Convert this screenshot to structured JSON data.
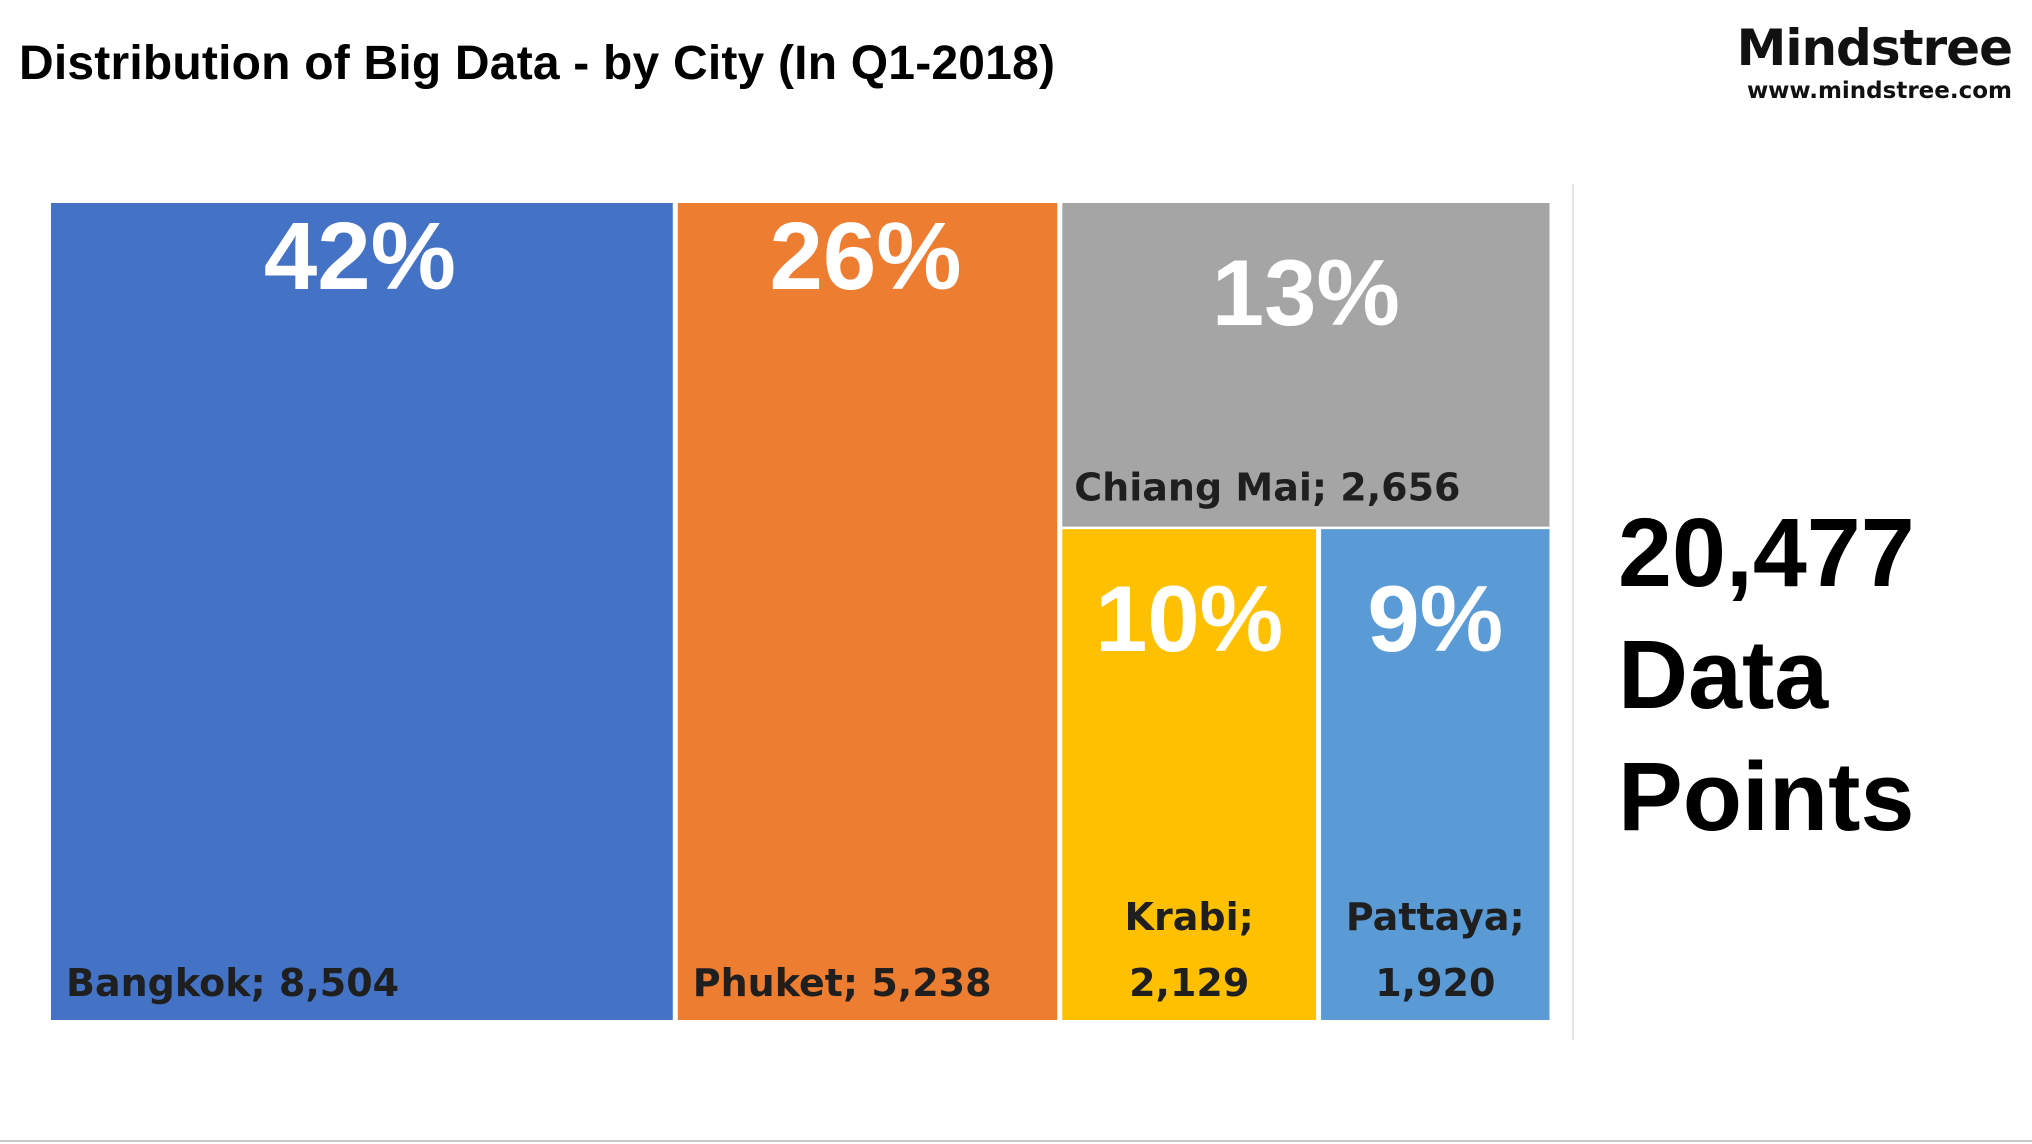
{
  "header": {
    "title": "Distribution of Big Data - by City (In Q1-2018)"
  },
  "brand": {
    "name": "Mindstree",
    "url": "www.mindstree.com"
  },
  "summary": {
    "value": "20,477",
    "line1": "Data",
    "line2": "Points"
  },
  "chart_data": {
    "type": "treemap",
    "total": 20477,
    "items": [
      {
        "name": "Bangkok",
        "value": 8504,
        "value_label": "8,504",
        "percent": "42%",
        "color": "#4472C4"
      },
      {
        "name": "Phuket",
        "value": 5238,
        "value_label": "5,238",
        "percent": "26%",
        "color": "#ED7D31"
      },
      {
        "name": "Chiang Mai",
        "value": 2656,
        "value_label": "2,656",
        "percent": "13%",
        "color": "#A5A5A5"
      },
      {
        "name": "Krabi",
        "value": 2129,
        "value_label": "2,129",
        "percent": "10%",
        "color": "#FFC000"
      },
      {
        "name": "Pattaya",
        "value": 1920,
        "value_label": "1,920",
        "percent": "9%",
        "color": "#5B9BD5"
      }
    ]
  }
}
